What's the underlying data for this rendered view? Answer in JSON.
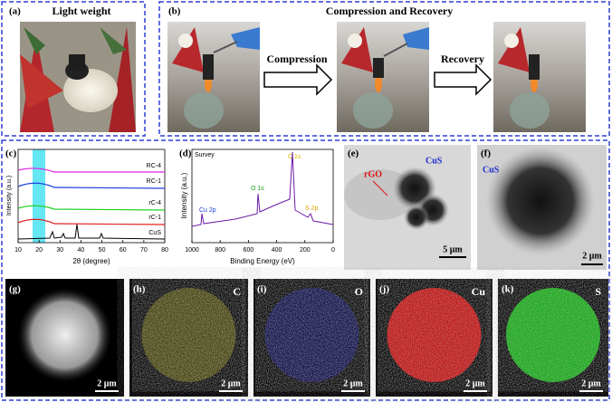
{
  "panels": {
    "a": {
      "label": "(a)",
      "title": "Light weight"
    },
    "b": {
      "label": "(b)",
      "title": "Compression and Recovery",
      "arrows": [
        "Compression",
        "Recovery"
      ]
    },
    "c": {
      "label": "(c)",
      "ylabel": "Intensity (a.u.)",
      "xlabel": "2θ (degree)",
      "xticks": [
        10,
        20,
        30,
        40,
        50,
        60,
        70,
        80
      ],
      "series": [
        "RC-4",
        "RC-1",
        "rC-4",
        "rC-1",
        "CuS"
      ]
    },
    "d": {
      "label": "(d)",
      "legend": "Survey",
      "ylabel": "Intensity (a.u.)",
      "xlabel": "Binding Energy (eV)",
      "xticks": [
        1000,
        800,
        600,
        400,
        200,
        0
      ],
      "peaks": [
        "Cu 2p",
        "O 1s",
        "C 1s",
        "S 2p"
      ]
    },
    "e": {
      "label": "(e)",
      "annotations": [
        "rGO",
        "CuS"
      ],
      "scale": "5 μm"
    },
    "f": {
      "label": "(f)",
      "annotations": [
        "CuS"
      ],
      "scale": "2 μm"
    },
    "g": {
      "label": "(g)",
      "scale": "2 μm"
    },
    "h": {
      "label": "(h)",
      "element": "C",
      "scale": "2 μm"
    },
    "i": {
      "label": "(i)",
      "element": "O",
      "scale": "2 μm"
    },
    "j": {
      "label": "(j)",
      "element": "Cu",
      "scale": "2 μm"
    },
    "k": {
      "label": "(k)",
      "element": "S",
      "scale": "2 μm"
    }
  }
}
